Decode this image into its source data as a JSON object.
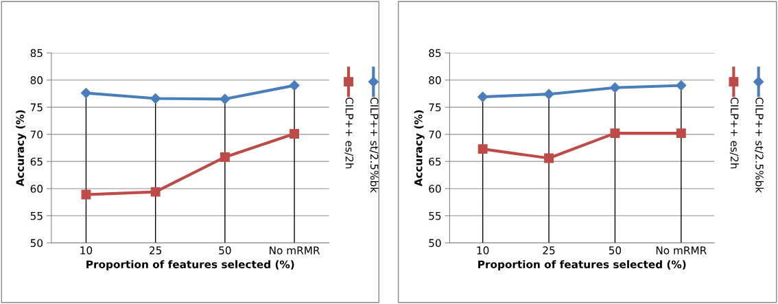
{
  "chart_data": [
    {
      "type": "line",
      "xlabel": "Proportion of features selected (%)",
      "ylabel": "Accuracy (%)",
      "categories": [
        "10",
        "25",
        "50",
        "No mRMR"
      ],
      "ylim": [
        50,
        85
      ],
      "yticks": [
        50,
        55,
        60,
        65,
        70,
        75,
        80,
        85
      ],
      "grid": true,
      "legend": "right",
      "series": [
        {
          "name": "CILP++ st/2.5%bk",
          "color": "#4a7ebb",
          "marker": "diamond",
          "values": [
            77.6,
            76.6,
            76.5,
            79.0
          ]
        },
        {
          "name": "CILP++ es/2h",
          "color": "#be4b48",
          "marker": "square",
          "values": [
            58.9,
            59.4,
            65.8,
            70.1
          ]
        }
      ]
    },
    {
      "type": "line",
      "xlabel": "Proportion of features selected (%)",
      "ylabel": "Accuracy (%)",
      "categories": [
        "10",
        "25",
        "50",
        "No mRMR"
      ],
      "ylim": [
        50,
        85
      ],
      "yticks": [
        50,
        55,
        60,
        65,
        70,
        75,
        80,
        85
      ],
      "grid": true,
      "legend": "right",
      "series": [
        {
          "name": "CILP++ st/2.5%bk",
          "color": "#4a7ebb",
          "marker": "diamond",
          "values": [
            76.9,
            77.4,
            78.6,
            79.0
          ]
        },
        {
          "name": "CILP++ es/2h",
          "color": "#be4b48",
          "marker": "square",
          "values": [
            67.3,
            65.6,
            70.2,
            70.2
          ]
        }
      ]
    }
  ]
}
